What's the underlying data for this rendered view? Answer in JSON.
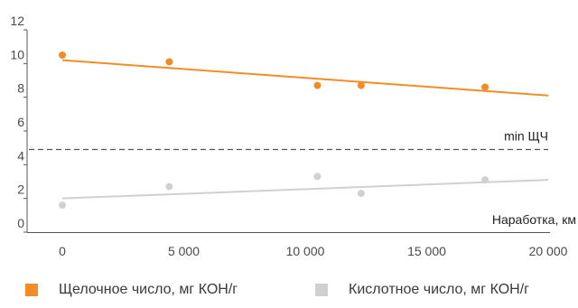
{
  "chart_data": {
    "type": "scatter",
    "title": "",
    "xlabel": "Наработка, км",
    "ylabel": "",
    "xlim": [
      0,
      20000
    ],
    "ylim": [
      0,
      12
    ],
    "x_ticks": [
      0,
      5000,
      10000,
      15000,
      20000
    ],
    "x_tick_labels": [
      "0",
      "5 000",
      "10 000",
      "15 000",
      "20 000"
    ],
    "y_ticks": [
      0,
      2,
      4,
      6,
      8,
      10,
      12
    ],
    "y_tick_labels": [
      "0",
      "2",
      "4",
      "6",
      "8",
      "10",
      "12"
    ],
    "grid": false,
    "legend_position": "bottom",
    "series": [
      {
        "name": "Щелочное число, мг КОН/г",
        "color": "#f28c28",
        "x": [
          0,
          4400,
          10500,
          12300,
          17400
        ],
        "y": [
          10.5,
          10.1,
          8.7,
          8.7,
          8.6
        ],
        "trend": {
          "x": [
            0,
            20000
          ],
          "y": [
            10.2,
            8.1
          ]
        }
      },
      {
        "name": "Кислотное число, мг КОН/г",
        "color": "#d0d0d0",
        "x": [
          0,
          4400,
          10500,
          12300,
          17400
        ],
        "y": [
          1.6,
          2.7,
          3.3,
          2.3,
          3.1
        ],
        "trend": {
          "x": [
            0,
            20000
          ],
          "y": [
            2.0,
            3.1
          ]
        }
      }
    ],
    "reference_line": {
      "label": "min ЩЧ",
      "y": 4.9,
      "style": "dashed",
      "color": "#555555"
    }
  }
}
